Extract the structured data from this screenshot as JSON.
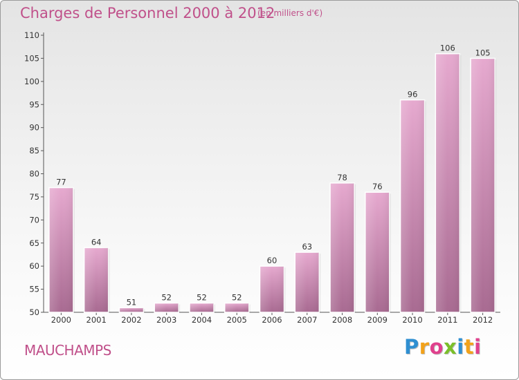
{
  "header": {
    "title": "Charges de Personnel 2000 à 2012",
    "subtitle": "(en milliers d'€)"
  },
  "footer": {
    "place": "MAUCHAMPS",
    "logo_text": "Proxiti"
  },
  "colors": {
    "title": "#c0508a",
    "bar_top": "#e6a9cf",
    "bar_bottom": "#a86a91"
  },
  "chart_data": {
    "type": "bar",
    "title": "Charges de Personnel 2000 à 2012",
    "subtitle": "(en milliers d'€)",
    "categories": [
      "2000",
      "2001",
      "2002",
      "2003",
      "2004",
      "2005",
      "2006",
      "2007",
      "2008",
      "2009",
      "2010",
      "2011",
      "2012"
    ],
    "values": [
      77,
      64,
      51,
      52,
      52,
      52,
      60,
      63,
      78,
      76,
      96,
      106,
      105
    ],
    "ylim": [
      50,
      110
    ],
    "yticks": [
      50,
      55,
      60,
      65,
      70,
      75,
      80,
      85,
      90,
      95,
      100,
      105,
      110
    ],
    "grid": false,
    "legend": "none"
  }
}
